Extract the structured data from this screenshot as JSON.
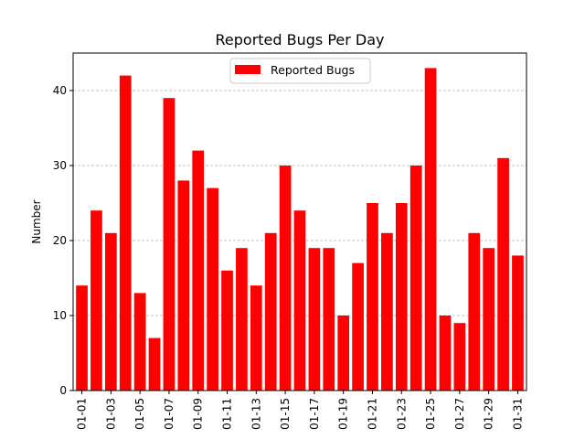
{
  "chart_data": {
    "type": "bar",
    "title": "Reported Bugs Per Day",
    "xlabel": "",
    "ylabel": "Number",
    "ylim": [
      0,
      45
    ],
    "yticks": [
      0,
      10,
      20,
      30,
      40
    ],
    "categories": [
      "01-01",
      "01-02",
      "01-03",
      "01-04",
      "01-05",
      "01-06",
      "01-07",
      "01-08",
      "01-09",
      "01-10",
      "01-11",
      "01-12",
      "01-13",
      "01-14",
      "01-15",
      "01-16",
      "01-17",
      "01-18",
      "01-19",
      "01-20",
      "01-21",
      "01-22",
      "01-23",
      "01-24",
      "01-25",
      "01-26",
      "01-27",
      "01-28",
      "01-29",
      "01-30",
      "01-31"
    ],
    "tick_labels": [
      "01-01",
      "01-03",
      "01-05",
      "01-07",
      "01-09",
      "01-11",
      "01-13",
      "01-15",
      "01-17",
      "01-19",
      "01-21",
      "01-23",
      "01-25",
      "01-27",
      "01-29",
      "01-31"
    ],
    "series": [
      {
        "name": "Reported Bugs",
        "color": "#ff0000",
        "values": [
          14,
          24,
          21,
          42,
          13,
          7,
          39,
          28,
          32,
          27,
          16,
          19,
          14,
          21,
          30,
          24,
          19,
          19,
          10,
          17,
          25,
          21,
          25,
          30,
          43,
          10,
          9,
          21,
          19,
          31,
          18
        ]
      }
    ],
    "grid": {
      "y": true,
      "x": false,
      "style": "dashed",
      "color": "#b0b0b0"
    },
    "legend": {
      "position": "top-center"
    }
  }
}
